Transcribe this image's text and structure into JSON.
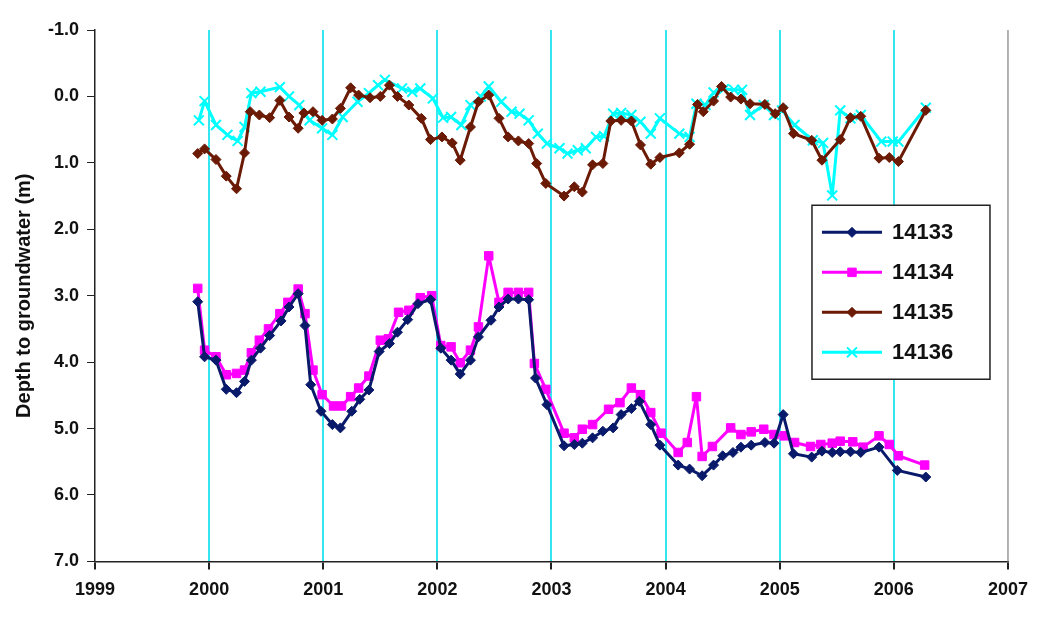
{
  "chart_data": {
    "type": "line",
    "ylabel": "Depth to groundwater (m)",
    "xlim": [
      1999,
      2007
    ],
    "xticks": [
      1999,
      2000,
      2001,
      2002,
      2003,
      2004,
      2005,
      2006,
      2007
    ],
    "ylim": [
      7,
      -1
    ],
    "yticks": [
      {
        "value": -1,
        "label": "-1.0"
      },
      {
        "value": 0,
        "label": "0.0"
      },
      {
        "value": 1,
        "label": "1.0"
      },
      {
        "value": 2,
        "label": "2.0"
      },
      {
        "value": 3,
        "label": "3.0"
      },
      {
        "value": 4,
        "label": "4.0"
      },
      {
        "value": 5,
        "label": "5.0"
      },
      {
        "value": 6,
        "label": "6.0"
      },
      {
        "value": 7,
        "label": "7.0"
      }
    ],
    "grid": "x",
    "legend": "right",
    "line_style": "solid",
    "series": [
      {
        "name": "14133",
        "color": "#0a1a6b",
        "marker": "diamond",
        "x": [
          1999.9,
          1999.96,
          2000.06,
          2000.15,
          2000.24,
          2000.31,
          2000.37,
          2000.45,
          2000.53,
          2000.63,
          2000.7,
          2000.78,
          2000.84,
          2000.89,
          2000.98,
          2001.08,
          2001.15,
          2001.25,
          2001.32,
          2001.4,
          2001.49,
          2001.58,
          2001.65,
          2001.74,
          2001.83,
          2001.94,
          2002.03,
          2002.12,
          2002.2,
          2002.29,
          2002.36,
          2002.47,
          2002.54,
          2002.62,
          2002.71,
          2002.8,
          2002.86,
          2002.96,
          2003.11,
          2003.2,
          2003.27,
          2003.36,
          2003.45,
          2003.54,
          2003.61,
          2003.7,
          2003.77,
          2003.87,
          2003.95,
          2004.11,
          2004.21,
          2004.32,
          2004.42,
          2004.5,
          2004.59,
          2004.66,
          2004.75,
          2004.87,
          2004.95,
          2005.03,
          2005.12,
          2005.28,
          2005.37,
          2005.46,
          2005.53,
          2005.62,
          2005.71,
          2005.87,
          2006.03,
          2006.28
        ],
        "values": [
          3.09,
          3.92,
          3.97,
          4.41,
          4.46,
          4.29,
          3.97,
          3.79,
          3.6,
          3.38,
          3.17,
          2.97,
          3.45,
          4.34,
          4.74,
          4.94,
          4.99,
          4.74,
          4.56,
          4.42,
          3.84,
          3.72,
          3.55,
          3.36,
          3.12,
          3.06,
          3.79,
          3.97,
          4.18,
          3.97,
          3.62,
          3.37,
          3.17,
          3.05,
          3.05,
          3.06,
          4.24,
          4.64,
          5.26,
          5.24,
          5.22,
          5.14,
          5.04,
          4.99,
          4.79,
          4.7,
          4.59,
          4.94,
          5.25,
          5.55,
          5.61,
          5.71,
          5.55,
          5.41,
          5.36,
          5.28,
          5.25,
          5.21,
          5.22,
          4.79,
          5.38,
          5.43,
          5.34,
          5.36,
          5.35,
          5.35,
          5.36,
          5.28,
          5.63,
          5.73
        ]
      },
      {
        "name": "14134",
        "color": "#ff00ff",
        "marker": "square",
        "x": [
          1999.9,
          1999.96,
          2000.06,
          2000.15,
          2000.24,
          2000.31,
          2000.37,
          2000.44,
          2000.52,
          2000.62,
          2000.69,
          2000.78,
          2000.84,
          2000.91,
          2000.99,
          2001.09,
          2001.16,
          2001.24,
          2001.31,
          2001.4,
          2001.5,
          2001.57,
          2001.66,
          2001.75,
          2001.85,
          2001.95,
          2002.03,
          2002.12,
          2002.2,
          2002.29,
          2002.36,
          2002.45,
          2002.54,
          2002.62,
          2002.71,
          2002.8,
          2002.85,
          2002.95,
          2003.11,
          2003.2,
          2003.27,
          2003.36,
          2003.5,
          2003.6,
          2003.7,
          2003.78,
          2003.87,
          2003.96,
          2004.11,
          2004.19,
          2004.27,
          2004.32,
          2004.41,
          2004.57,
          2004.66,
          2004.75,
          2004.86,
          2004.95,
          2005.04,
          2005.13,
          2005.27,
          2005.36,
          2005.46,
          2005.53,
          2005.64,
          2005.73,
          2005.87,
          2005.96,
          2006.04,
          2006.27
        ],
        "values": [
          2.89,
          3.82,
          3.92,
          4.19,
          4.17,
          4.12,
          3.86,
          3.67,
          3.5,
          3.27,
          3.1,
          2.9,
          3.27,
          4.12,
          4.49,
          4.66,
          4.66,
          4.52,
          4.39,
          4.21,
          3.67,
          3.65,
          3.25,
          3.22,
          3.03,
          3.0,
          3.75,
          3.77,
          4.01,
          3.82,
          3.47,
          2.4,
          3.1,
          2.95,
          2.95,
          2.95,
          4.02,
          4.41,
          5.07,
          5.14,
          5.01,
          4.94,
          4.71,
          4.61,
          4.39,
          4.49,
          4.76,
          5.07,
          5.36,
          5.21,
          4.52,
          5.42,
          5.27,
          4.99,
          5.09,
          5.05,
          5.01,
          5.09,
          5.11,
          5.21,
          5.27,
          5.24,
          5.22,
          5.19,
          5.2,
          5.28,
          5.11,
          5.24,
          5.41,
          5.55
        ]
      },
      {
        "name": "14135",
        "color": "#6b1a05",
        "marker": "diamond",
        "x": [
          1999.9,
          1999.96,
          2000.06,
          2000.15,
          2000.24,
          2000.31,
          2000.36,
          2000.44,
          2000.53,
          2000.62,
          2000.7,
          2000.78,
          2000.83,
          2000.91,
          2000.99,
          2001.08,
          2001.15,
          2001.24,
          2001.31,
          2001.41,
          2001.5,
          2001.58,
          2001.65,
          2001.75,
          2001.86,
          2001.94,
          2002.04,
          2002.13,
          2002.2,
          2002.29,
          2002.36,
          2002.45,
          2002.54,
          2002.62,
          2002.71,
          2002.8,
          2002.87,
          2002.95,
          2003.11,
          2003.2,
          2003.27,
          2003.36,
          2003.45,
          2003.52,
          2003.61,
          2003.7,
          2003.78,
          2003.87,
          2003.95,
          2004.12,
          2004.21,
          2004.28,
          2004.33,
          2004.42,
          2004.49,
          2004.57,
          2004.66,
          2004.74,
          2004.87,
          2004.96,
          2005.03,
          2005.12,
          2005.28,
          2005.37,
          2005.53,
          2005.62,
          2005.71,
          2005.87,
          2005.96,
          2006.04,
          2006.28
        ],
        "values": [
          0.86,
          0.79,
          0.95,
          1.2,
          1.39,
          0.85,
          0.23,
          0.28,
          0.32,
          0.06,
          0.31,
          0.48,
          0.25,
          0.23,
          0.36,
          0.34,
          0.18,
          -0.13,
          -0.02,
          0.02,
          0.0,
          -0.17,
          0.0,
          0.13,
          0.33,
          0.65,
          0.61,
          0.7,
          0.96,
          0.46,
          0.08,
          -0.02,
          0.33,
          0.61,
          0.67,
          0.71,
          1.01,
          1.31,
          1.5,
          1.36,
          1.44,
          1.03,
          1.01,
          0.37,
          0.36,
          0.37,
          0.73,
          1.02,
          0.92,
          0.85,
          0.72,
          0.12,
          0.23,
          0.07,
          -0.15,
          0.01,
          0.04,
          0.11,
          0.12,
          0.26,
          0.17,
          0.56,
          0.66,
          0.96,
          0.65,
          0.32,
          0.3,
          0.93,
          0.92,
          0.98,
          0.21
        ]
      },
      {
        "name": "14136",
        "color": "#00ffff",
        "marker": "cross",
        "x": [
          1999.91,
          1999.96,
          2000.06,
          2000.16,
          2000.25,
          2000.31,
          2000.37,
          2000.45,
          2000.62,
          2000.7,
          2000.79,
          2000.88,
          2000.99,
          2001.08,
          2001.17,
          2001.3,
          2001.4,
          2001.48,
          2001.54,
          2001.69,
          2001.78,
          2001.85,
          2001.96,
          2002.05,
          2002.12,
          2002.21,
          2002.29,
          2002.38,
          2002.45,
          2002.56,
          2002.65,
          2002.72,
          2002.8,
          2002.88,
          2002.96,
          2003.07,
          2003.14,
          2003.23,
          2003.3,
          2003.39,
          2003.46,
          2003.54,
          2003.61,
          2003.7,
          2003.78,
          2003.87,
          2003.95,
          2004.12,
          2004.21,
          2004.27,
          2004.35,
          2004.42,
          2004.51,
          2004.6,
          2004.67,
          2004.74,
          2004.86,
          2004.95,
          2005.02,
          2005.13,
          2005.29,
          2005.38,
          2005.46,
          2005.53,
          2005.62,
          2005.71,
          2005.89,
          2005.99,
          2006.04,
          2006.28
        ],
        "values": [
          0.36,
          0.07,
          0.43,
          0.58,
          0.67,
          0.46,
          -0.05,
          -0.07,
          -0.14,
          0.0,
          0.13,
          0.36,
          0.48,
          0.58,
          0.31,
          0.08,
          -0.05,
          -0.17,
          -0.25,
          -0.12,
          -0.07,
          -0.12,
          0.03,
          0.32,
          0.31,
          0.43,
          0.13,
          0.0,
          -0.15,
          0.08,
          0.23,
          0.26,
          0.36,
          0.56,
          0.71,
          0.78,
          0.86,
          0.81,
          0.78,
          0.61,
          0.6,
          0.26,
          0.25,
          0.28,
          0.38,
          0.56,
          0.33,
          0.56,
          0.61,
          0.11,
          0.13,
          -0.06,
          -0.11,
          -0.1,
          -0.1,
          0.28,
          0.13,
          0.28,
          0.21,
          0.43,
          0.66,
          0.7,
          1.49,
          0.21,
          0.33,
          0.28,
          0.68,
          0.68,
          0.68,
          0.17
        ]
      }
    ]
  }
}
